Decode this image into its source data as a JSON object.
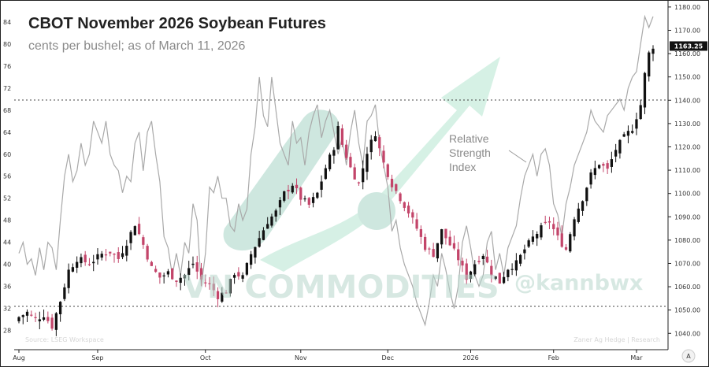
{
  "chart_data": {
    "type": "candlestick",
    "title": "CBOT November 2026 Soybean Futures",
    "subtitle": "cents per bushel; as of March 11, 2026",
    "x_labels": [
      "Aug",
      "Sep",
      "Oct",
      "Nov",
      "Dec",
      "2026",
      "Feb",
      "Mar"
    ],
    "x_label_positions": [
      0,
      19,
      45,
      68,
      89,
      109,
      129,
      149
    ],
    "n_sessions": 154,
    "price_axis": {
      "side": "right",
      "ylim": [
        1033,
        1183
      ],
      "ticks": [
        1040,
        1050,
        1060,
        1070,
        1080,
        1090,
        1100,
        1110,
        1120,
        1130,
        1140,
        1150,
        1160,
        1170,
        1180
      ],
      "labels": [
        "1040.00",
        "1050.00",
        "1060.00",
        "1070.00",
        "1080.00",
        "1090.00",
        "1100.00",
        "1110.00",
        "1120.00",
        "1130.00",
        "1140.00",
        "1150.00",
        "1160.00",
        "1170.00",
        "1180.00"
      ]
    },
    "rsi_axis": {
      "side": "left",
      "ylim": [
        24.5,
        88
      ],
      "ticks": [
        24,
        28,
        32,
        36,
        40,
        44,
        48,
        52,
        56,
        60,
        64,
        68,
        72,
        76,
        80,
        84,
        88
      ]
    },
    "last_price": 1163.25,
    "last_price_label": "1163.25",
    "rsi_reference_levels": [
      70,
      30
    ],
    "price_close_waypoints": [
      [
        0,
        1047
      ],
      [
        2,
        1049
      ],
      [
        4,
        1046
      ],
      [
        6,
        1048
      ],
      [
        8,
        1043
      ],
      [
        10,
        1054
      ],
      [
        12,
        1067
      ],
      [
        14,
        1072
      ],
      [
        17,
        1070
      ],
      [
        20,
        1074
      ],
      [
        22,
        1075
      ],
      [
        24,
        1072
      ],
      [
        26,
        1079
      ],
      [
        28,
        1087
      ],
      [
        30,
        1078
      ],
      [
        32,
        1068
      ],
      [
        34,
        1064
      ],
      [
        36,
        1066
      ],
      [
        38,
        1063
      ],
      [
        40,
        1065
      ],
      [
        42,
        1070
      ],
      [
        44,
        1063
      ],
      [
        46,
        1061
      ],
      [
        48,
        1056
      ],
      [
        50,
        1058
      ],
      [
        52,
        1066
      ],
      [
        54,
        1064
      ],
      [
        56,
        1074
      ],
      [
        58,
        1081
      ],
      [
        60,
        1088
      ],
      [
        62,
        1092
      ],
      [
        64,
        1100
      ],
      [
        66,
        1104
      ],
      [
        68,
        1098
      ],
      [
        70,
        1095
      ],
      [
        72,
        1100
      ],
      [
        74,
        1111
      ],
      [
        76,
        1120
      ],
      [
        77,
        1128
      ],
      [
        78,
        1121
      ],
      [
        80,
        1111
      ],
      [
        82,
        1104
      ],
      [
        84,
        1118
      ],
      [
        86,
        1126
      ],
      [
        87,
        1119
      ],
      [
        88,
        1113
      ],
      [
        90,
        1104
      ],
      [
        92,
        1098
      ],
      [
        94,
        1092
      ],
      [
        96,
        1085
      ],
      [
        98,
        1077
      ],
      [
        100,
        1074
      ],
      [
        102,
        1084
      ],
      [
        104,
        1078
      ],
      [
        106,
        1072
      ],
      [
        108,
        1064
      ],
      [
        110,
        1070
      ],
      [
        112,
        1074
      ],
      [
        114,
        1066
      ],
      [
        116,
        1062
      ],
      [
        118,
        1068
      ],
      [
        120,
        1070
      ],
      [
        122,
        1076
      ],
      [
        124,
        1081
      ],
      [
        126,
        1085
      ],
      [
        128,
        1088
      ],
      [
        130,
        1081
      ],
      [
        132,
        1076
      ],
      [
        134,
        1090
      ],
      [
        136,
        1098
      ],
      [
        138,
        1108
      ],
      [
        140,
        1113
      ],
      [
        142,
        1110
      ],
      [
        144,
        1119
      ],
      [
        146,
        1124
      ],
      [
        148,
        1128
      ],
      [
        150,
        1138
      ],
      [
        151,
        1151
      ],
      [
        152,
        1160
      ],
      [
        153,
        1163.25
      ]
    ],
    "rsi_waypoints": [
      [
        0,
        42
      ],
      [
        1,
        44
      ],
      [
        2,
        40
      ],
      [
        3,
        41
      ],
      [
        4,
        38
      ],
      [
        5,
        43
      ],
      [
        6,
        39
      ],
      [
        7,
        44
      ],
      [
        8,
        43
      ],
      [
        9,
        39
      ],
      [
        10,
        48
      ],
      [
        11,
        56
      ],
      [
        12,
        60
      ],
      [
        13,
        55
      ],
      [
        14,
        57
      ],
      [
        15,
        62
      ],
      [
        16,
        58
      ],
      [
        17,
        60
      ],
      [
        18,
        66
      ],
      [
        19,
        64
      ],
      [
        20,
        62
      ],
      [
        21,
        66
      ],
      [
        22,
        60
      ],
      [
        23,
        58
      ],
      [
        24,
        57
      ],
      [
        25,
        53
      ],
      [
        26,
        56
      ],
      [
        27,
        55
      ],
      [
        28,
        62
      ],
      [
        29,
        64
      ],
      [
        30,
        57
      ],
      [
        31,
        64
      ],
      [
        32,
        66
      ],
      [
        33,
        60
      ],
      [
        34,
        55
      ],
      [
        35,
        45
      ],
      [
        36,
        43
      ],
      [
        37,
        38
      ],
      [
        38,
        42
      ],
      [
        39,
        38
      ],
      [
        40,
        44
      ],
      [
        41,
        42
      ],
      [
        42,
        51
      ],
      [
        43,
        48
      ],
      [
        44,
        36
      ],
      [
        45,
        42
      ],
      [
        46,
        54
      ],
      [
        47,
        53
      ],
      [
        48,
        56
      ],
      [
        49,
        52
      ],
      [
        50,
        52
      ],
      [
        51,
        47
      ],
      [
        52,
        46
      ],
      [
        53,
        51
      ],
      [
        54,
        48
      ],
      [
        55,
        50
      ],
      [
        56,
        60
      ],
      [
        57,
        65
      ],
      [
        58,
        74
      ],
      [
        59,
        67
      ],
      [
        60,
        65
      ],
      [
        61,
        74
      ],
      [
        62,
        68
      ],
      [
        63,
        62
      ],
      [
        64,
        60
      ],
      [
        65,
        58
      ],
      [
        66,
        66
      ],
      [
        67,
        62
      ],
      [
        68,
        63
      ],
      [
        69,
        58
      ],
      [
        70,
        64
      ],
      [
        71,
        67
      ],
      [
        72,
        69
      ],
      [
        73,
        63
      ],
      [
        74,
        66
      ],
      [
        75,
        68
      ],
      [
        76,
        64
      ],
      [
        77,
        60
      ],
      [
        78,
        63
      ],
      [
        79,
        58
      ],
      [
        80,
        64
      ],
      [
        81,
        68
      ],
      [
        82,
        62
      ],
      [
        83,
        58
      ],
      [
        84,
        66
      ],
      [
        85,
        67
      ],
      [
        86,
        69
      ],
      [
        87,
        62
      ],
      [
        88,
        58
      ],
      [
        89,
        54
      ],
      [
        90,
        46
      ],
      [
        91,
        48
      ],
      [
        92,
        43
      ],
      [
        93,
        40
      ],
      [
        94,
        38
      ],
      [
        95,
        36
      ],
      [
        96,
        33
      ],
      [
        97,
        31
      ],
      [
        98,
        29
      ],
      [
        99,
        33
      ],
      [
        100,
        38
      ],
      [
        101,
        36
      ],
      [
        102,
        42
      ],
      [
        103,
        39
      ],
      [
        104,
        35
      ],
      [
        105,
        32
      ],
      [
        106,
        36
      ],
      [
        107,
        44
      ],
      [
        108,
        47
      ],
      [
        109,
        43
      ],
      [
        110,
        38
      ],
      [
        111,
        36
      ],
      [
        112,
        38
      ],
      [
        113,
        44
      ],
      [
        114,
        46
      ],
      [
        115,
        39
      ],
      [
        116,
        42
      ],
      [
        117,
        38
      ],
      [
        118,
        43
      ],
      [
        119,
        45
      ],
      [
        120,
        47
      ],
      [
        121,
        52
      ],
      [
        122,
        56
      ],
      [
        123,
        58
      ],
      [
        124,
        60
      ],
      [
        125,
        56
      ],
      [
        126,
        60
      ],
      [
        127,
        61
      ],
      [
        128,
        58
      ],
      [
        129,
        51
      ],
      [
        130,
        49
      ],
      [
        131,
        45
      ],
      [
        132,
        51
      ],
      [
        133,
        54
      ],
      [
        134,
        58
      ],
      [
        135,
        60
      ],
      [
        136,
        62
      ],
      [
        137,
        64
      ],
      [
        138,
        68
      ],
      [
        139,
        66
      ],
      [
        140,
        65
      ],
      [
        141,
        64
      ],
      [
        142,
        67
      ],
      [
        143,
        68
      ],
      [
        144,
        69
      ],
      [
        145,
        70
      ],
      [
        146,
        68
      ],
      [
        147,
        72
      ],
      [
        148,
        74
      ],
      [
        149,
        75
      ],
      [
        150,
        80
      ],
      [
        151,
        85
      ],
      [
        152,
        83
      ],
      [
        153,
        85
      ]
    ],
    "annotation": "Relative\nStrength\nIndex",
    "watermarks": [
      "VN COMMODITIES",
      "@kannbwx"
    ],
    "source_left": "Source: LSEG Workspace",
    "source_right": "Zaner Ag Hedge | Research",
    "colors": {
      "up": "#111111",
      "down": "#c3456a",
      "rsi": "#a9a9a9",
      "arrow": "#aee3cc",
      "watermark": "#b7d6cc",
      "grid": "#000000"
    },
    "scale_button": "A"
  }
}
